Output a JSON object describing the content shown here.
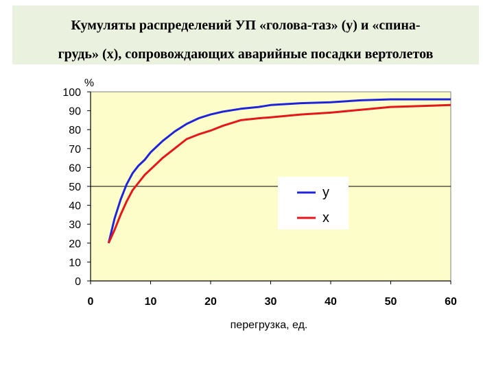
{
  "title_lines": [
    "Кумуляты распределений УП «голова-таз» (y) и «спина-",
    "грудь» (x), сопровождающих аварийные посадки вертолетов"
  ],
  "chart_data": {
    "type": "line",
    "title": "Кумуляты распределений УП «голова-таз» (y) и «спина-грудь» (x), сопровождающих аварийные посадки вертолетов",
    "xlabel": "перегрузка, ед.",
    "ylabel": "%",
    "xlim": [
      0,
      60
    ],
    "ylim": [
      0,
      100
    ],
    "xticks": [
      0,
      10,
      20,
      30,
      40,
      50,
      60
    ],
    "yticks": [
      0,
      10,
      20,
      30,
      40,
      50,
      60,
      70,
      80,
      90,
      100
    ],
    "grid": "horizontal line at 50",
    "legend": "center-right",
    "plot_bg": "#fdfdc9",
    "series": [
      {
        "name": "y",
        "color": "#1f24d8",
        "x": [
          3,
          4,
          5,
          6,
          7,
          8,
          9,
          10,
          11,
          12,
          14,
          16,
          18,
          20,
          22,
          25,
          28,
          30,
          35,
          40,
          45,
          50,
          55,
          60
        ],
        "values": [
          20,
          33,
          43,
          51,
          57,
          61,
          64,
          68,
          71,
          74,
          79,
          83,
          86,
          88,
          89.5,
          91,
          92,
          93,
          94,
          94.5,
          95.5,
          96,
          96,
          96
        ]
      },
      {
        "name": "x",
        "color": "#e4171b",
        "x": [
          3,
          4,
          5,
          6,
          7,
          8,
          9,
          10,
          11,
          12,
          14,
          16,
          18,
          20,
          22,
          25,
          28,
          30,
          35,
          40,
          45,
          50,
          55,
          60
        ],
        "values": [
          20,
          27,
          35,
          42,
          48,
          52,
          56,
          59,
          62,
          65,
          70,
          75,
          77.5,
          79.5,
          82,
          85,
          86,
          86.5,
          88,
          89,
          90.5,
          92,
          92.5,
          93
        ]
      }
    ]
  }
}
